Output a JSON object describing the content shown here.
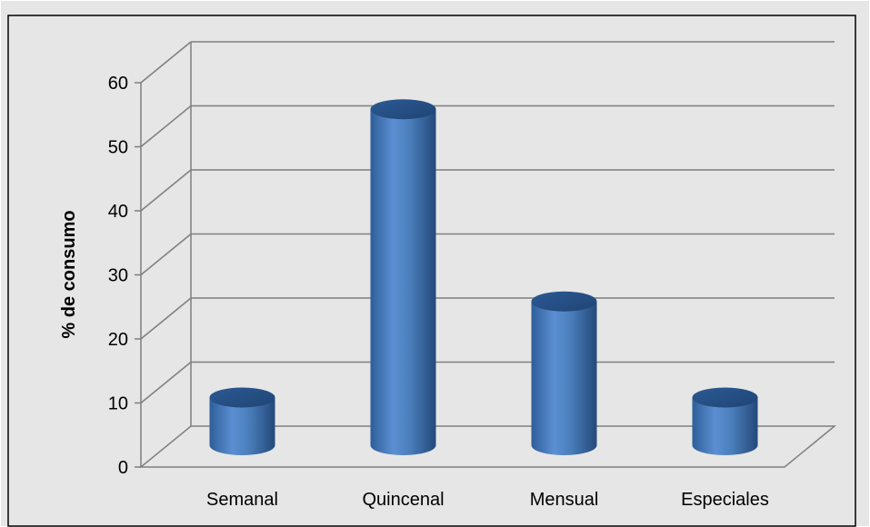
{
  "chart_data": {
    "type": "bar",
    "style": "3d-cylinder",
    "categories": [
      "Semanal",
      "Quincenal",
      "Mensual",
      "Especiales"
    ],
    "values": [
      10,
      55,
      25,
      10
    ],
    "title": "",
    "xlabel": "",
    "ylabel": "% de consumo",
    "ylim": [
      0,
      60
    ],
    "yticks": [
      "0",
      "10",
      "20",
      "30",
      "40",
      "50",
      "60"
    ],
    "grid": true,
    "legend": "none",
    "colors": {
      "bar": "#4a7ebb",
      "plot_background": "#e6e6e6",
      "gridline": "#7f7f7f",
      "frame": "#000000"
    }
  }
}
